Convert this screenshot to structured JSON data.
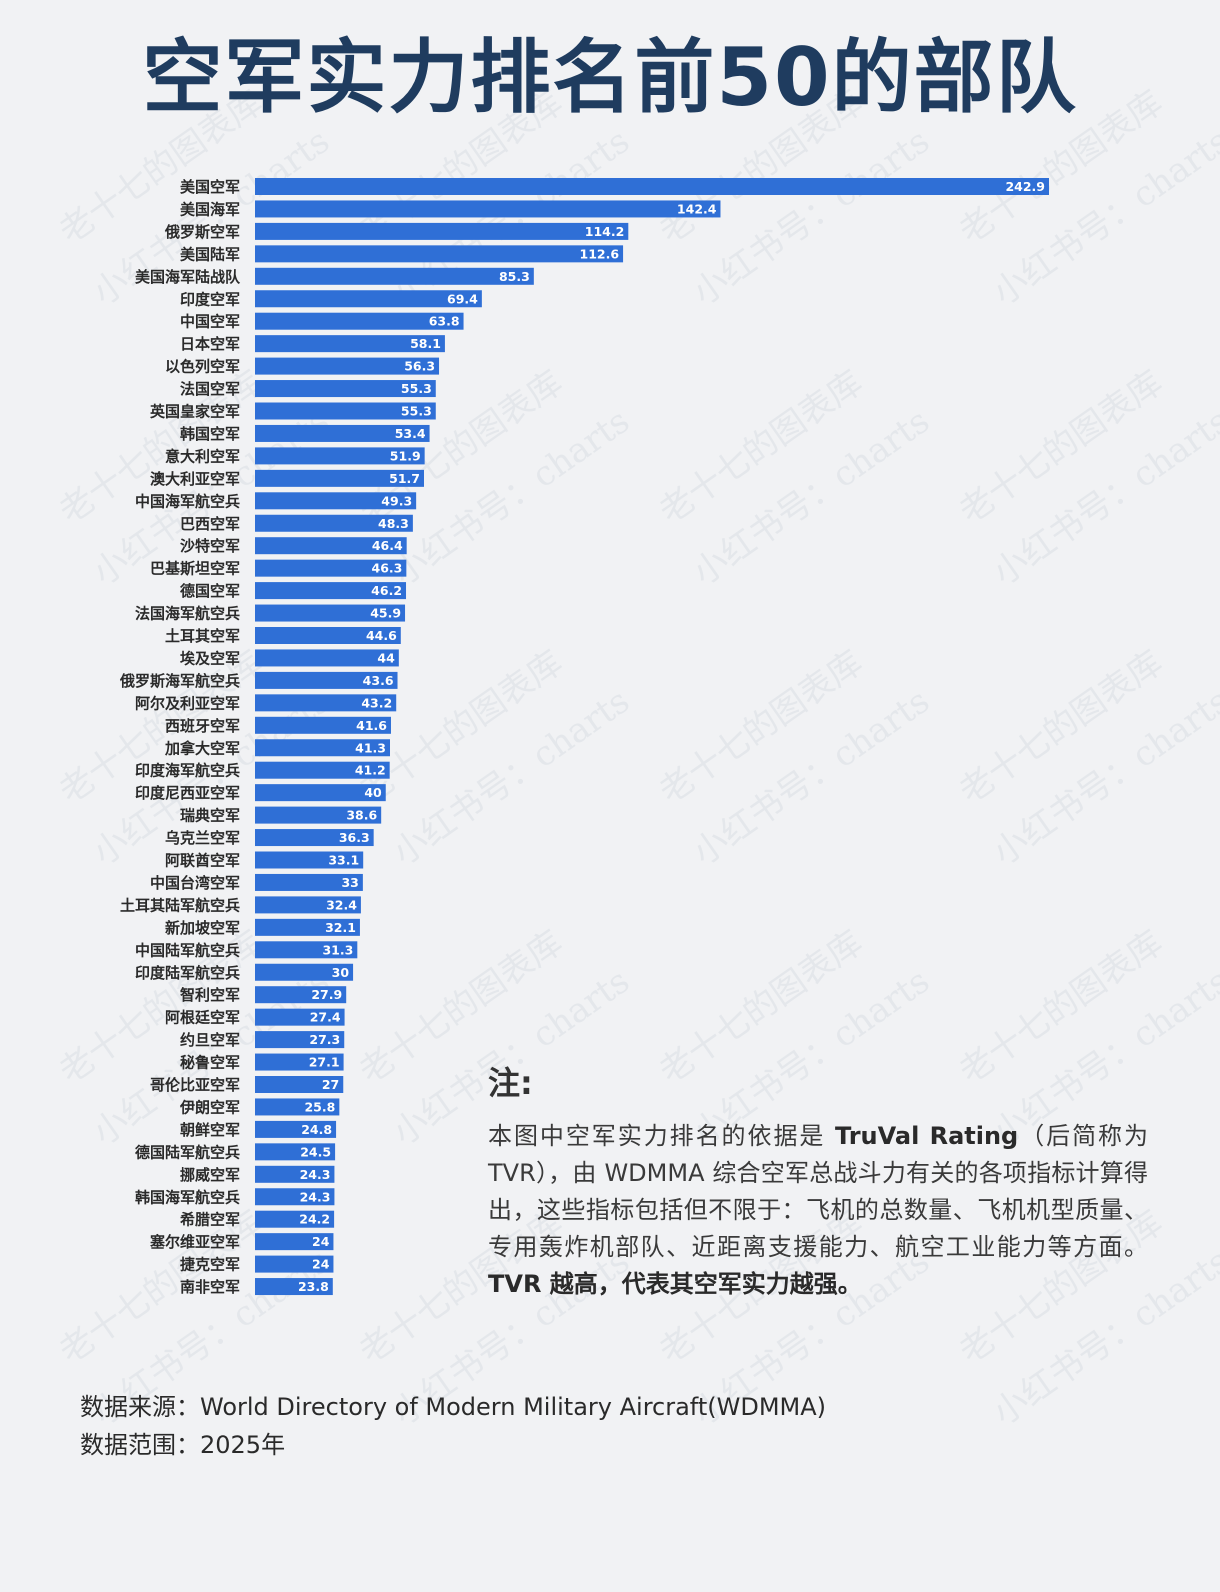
{
  "title": "空军实力排名前50的部队",
  "chart_data": {
    "type": "bar",
    "orientation": "horizontal",
    "bar_color": "#2f6fd6",
    "categories": [
      "美国空军",
      "美国海军",
      "俄罗斯空军",
      "美国陆军",
      "美国海军陆战队",
      "印度空军",
      "中国空军",
      "日本空军",
      "以色列空军",
      "法国空军",
      "英国皇家空军",
      "韩国空军",
      "意大利空军",
      "澳大利亚空军",
      "中国海军航空兵",
      "巴西空军",
      "沙特空军",
      "巴基斯坦空军",
      "德国空军",
      "法国海军航空兵",
      "土耳其空军",
      "埃及空军",
      "俄罗斯海军航空兵",
      "阿尔及利亚空军",
      "西班牙空军",
      "加拿大空军",
      "印度海军航空兵",
      "印度尼西亚空军",
      "瑞典空军",
      "乌克兰空军",
      "阿联酋空军",
      "中国台湾空军",
      "土耳其陆军航空兵",
      "新加坡空军",
      "中国陆军航空兵",
      "印度陆军航空兵",
      "智利空军",
      "阿根廷空军",
      "约旦空军",
      "秘鲁空军",
      "哥伦比亚空军",
      "伊朗空军",
      "朝鲜空军",
      "德国陆军航空兵",
      "挪威空军",
      "韩国海军航空兵",
      "希腊空军",
      "塞尔维亚空军",
      "捷克空军",
      "南非空军"
    ],
    "values": [
      242.9,
      142.4,
      114.2,
      112.6,
      85.3,
      69.4,
      63.8,
      58.1,
      56.3,
      55.3,
      55.3,
      53.4,
      51.9,
      51.7,
      49.3,
      48.3,
      46.4,
      46.3,
      46.2,
      45.9,
      44.6,
      44,
      43.6,
      43.2,
      41.6,
      41.3,
      41.2,
      40,
      38.6,
      36.3,
      33.1,
      33,
      32.4,
      32.1,
      31.3,
      30,
      27.9,
      27.4,
      27.3,
      27.1,
      27,
      25.8,
      24.8,
      24.5,
      24.3,
      24.3,
      24.2,
      24,
      24,
      23.8
    ],
    "value_labels": [
      "242.9",
      "142.4",
      "114.2",
      "112.6",
      "85.3",
      "69.4",
      "63.8",
      "58.1",
      "56.3",
      "55.3",
      "55.3",
      "53.4",
      "51.9",
      "51.7",
      "49.3",
      "48.3",
      "46.4",
      "46.3",
      "46.2",
      "45.9",
      "44.6",
      "44",
      "43.6",
      "43.2",
      "41.6",
      "41.3",
      "41.2",
      "40",
      "38.6",
      "36.3",
      "33.1",
      "33",
      "32.4",
      "32.1",
      "31.3",
      "30",
      "27.9",
      "27.4",
      "27.3",
      "27.1",
      "27",
      "25.8",
      "24.8",
      "24.5",
      "24.3",
      "24.3",
      "24.2",
      "24",
      "24",
      "23.8"
    ],
    "title": "空军实力排名前50的部队",
    "grid": false,
    "legend": "none"
  },
  "note": {
    "heading": "注:",
    "body_part1": "本图中空军实力排名的依据是 ",
    "body_bold1": "TruVal Rating",
    "body_part2": "（后简称为TVR），由 WDMMA 综合空军总战斗力有关的各项指标计算得出，这些指标包括但不限于：飞机的总数量、飞机机型质量、专用轰炸机部队、近距离支援能力、航空工业能力等方面。",
    "body_bold2": "TVR 越高，代表其空军实力越强。"
  },
  "source": {
    "line1": "数据来源：World Directory of Modern Military Aircraft(WDMMA)",
    "line2": "数据范围：2025年"
  },
  "watermark": {
    "line1": "老十七的图表库",
    "line2": "小红书号：charts"
  }
}
